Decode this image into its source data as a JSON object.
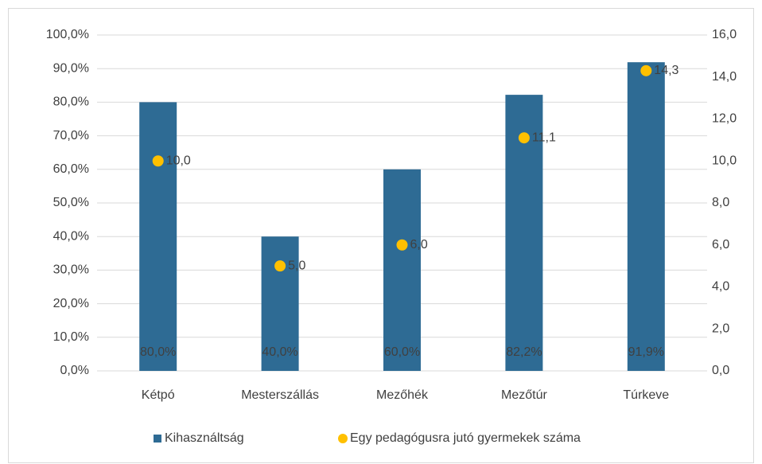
{
  "chart_data": {
    "type": "bar",
    "categories": [
      "Kétpó",
      "Mesterszállás",
      "Mezőhék",
      "Mezőtúr",
      "Túrkeve"
    ],
    "series": [
      {
        "name": "Kihasználtság",
        "color": "#2e6b94",
        "values": [
          80,
          40,
          60,
          82.2,
          91.9
        ],
        "value_labels": [
          "80,0%",
          "40,0%",
          "60,0%",
          "82,2%",
          "91,9%"
        ]
      },
      {
        "name": "Egy pedagógusra jutó gyermekek száma",
        "type": "scatter",
        "axis": "y2",
        "color": "#ffc000",
        "values": [
          10,
          5,
          6,
          11.1,
          14.3
        ],
        "value_labels": [
          "10,0",
          "5,0",
          "6,0",
          "11,1",
          "14,3"
        ]
      }
    ],
    "ylim": [
      0,
      100
    ],
    "yticks": [
      {
        "value": 0,
        "label": "0,0%"
      },
      {
        "value": 10,
        "label": "10,0%"
      },
      {
        "value": 20,
        "label": "20,0%"
      },
      {
        "value": 30,
        "label": "30,0%"
      },
      {
        "value": 40,
        "label": "40,0%"
      },
      {
        "value": 50,
        "label": "50,0%"
      },
      {
        "value": 60,
        "label": "60,0%"
      },
      {
        "value": 70,
        "label": "70,0%"
      },
      {
        "value": 80,
        "label": "80,0%"
      },
      {
        "value": 90,
        "label": "90,0%"
      },
      {
        "value": 100,
        "label": "100,0%"
      }
    ],
    "y2lim": [
      0,
      16
    ],
    "y2ticks": [
      {
        "value": 0,
        "label": "0,0"
      },
      {
        "value": 2,
        "label": "2,0"
      },
      {
        "value": 4,
        "label": "4,0"
      },
      {
        "value": 6,
        "label": "6,0"
      },
      {
        "value": 8,
        "label": "8,0"
      },
      {
        "value": 10,
        "label": "10,0"
      },
      {
        "value": 12,
        "label": "12,0"
      },
      {
        "value": 14,
        "label": "14,0"
      },
      {
        "value": 16,
        "label": "16,0"
      }
    ],
    "grid": true,
    "legend": "bottom"
  }
}
